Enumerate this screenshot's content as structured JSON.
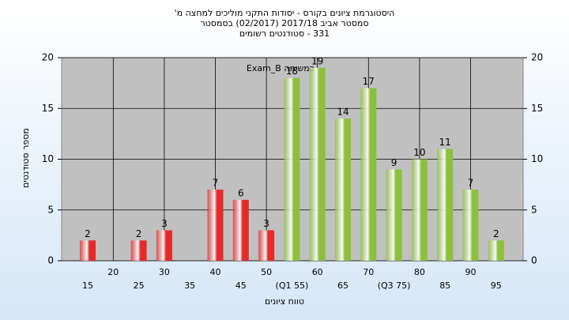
{
  "chart_data": {
    "type": "bar",
    "title": "היסטוגרמת ציונים בקורס - יסודות התקני מוליכים למחצה מ'",
    "subtitle": [
      "סמסטר אביב 2017/18  (02/2017)  בסמסטר",
      "331 - סטודנטים רשומים"
    ],
    "annotation": "במשימה Exam_B",
    "x_label": "טווח ציונים",
    "y_label": "מספר סטודנטים",
    "categories": [
      "15",
      "20",
      "25",
      "30",
      "35",
      "40",
      "45",
      "50",
      "(Q1 55)",
      "60",
      "65",
      "70",
      "(Q3 75)",
      "80",
      "85",
      "90",
      "95"
    ],
    "values": [
      2,
      0,
      2,
      3,
      0,
      7,
      6,
      3,
      18,
      19,
      14,
      17,
      9,
      10,
      11,
      7,
      2
    ],
    "colors": [
      "#e52a2a",
      "#e52a2a",
      "#e52a2a",
      "#e52a2a",
      "#e52a2a",
      "#e52a2a",
      "#e52a2a",
      "#e52a2a",
      "#8cbf3c",
      "#8cbf3c",
      "#8cbf3c",
      "#8cbf3c",
      "#8cbf3c",
      "#8cbf3c",
      "#8cbf3c",
      "#8cbf3c",
      "#8cbf3c"
    ],
    "ylim": [
      0,
      20
    ],
    "yticks": [
      0,
      5,
      10,
      15,
      20
    ],
    "y2lim": [
      0,
      20
    ],
    "y2ticks": [
      0,
      5,
      10,
      15,
      20
    ],
    "grid": true
  }
}
